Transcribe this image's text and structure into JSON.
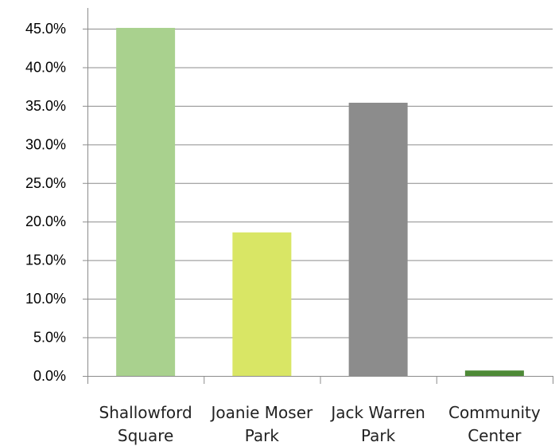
{
  "chart_data": {
    "type": "bar",
    "title": "",
    "xlabel": "",
    "ylabel": "",
    "categories": [
      [
        "Shallowford",
        "Square"
      ],
      [
        "Joanie Moser",
        "Park"
      ],
      [
        "Jack Warren",
        "Park"
      ],
      [
        "Community",
        "Center"
      ]
    ],
    "values": [
      45.1,
      18.6,
      35.4,
      0.7
    ],
    "colors": [
      "#a9d18e",
      "#d9e665",
      "#8c8c8c",
      "#4e8a37"
    ],
    "ylim": [
      0,
      45
    ],
    "yticks": [
      0,
      5,
      10,
      15,
      20,
      25,
      30,
      35,
      40,
      45
    ],
    "ytick_labels": [
      "0.0%",
      "5.0%",
      "10.0%",
      "15.0%",
      "20.0%",
      "25.0%",
      "30.0%",
      "35.0%",
      "40.0%",
      "45.0%"
    ],
    "grid": true,
    "legend": "none"
  }
}
